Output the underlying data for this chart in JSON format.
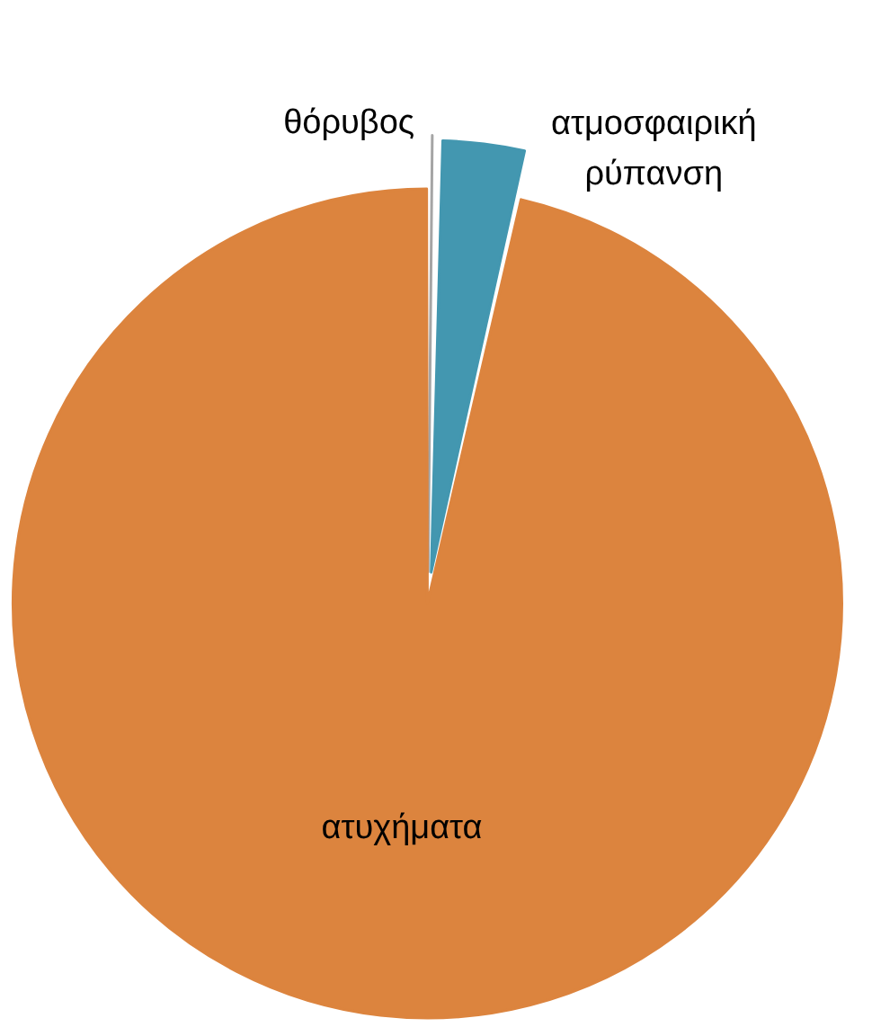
{
  "chart_data": {
    "type": "pie",
    "categories": [
      "θόρυβος",
      "ατμοσφαιρική ρύπανση",
      "ατυχήματα"
    ],
    "values": [
      0.3,
      3.3,
      96.4
    ],
    "colors": [
      "#a5a5a5",
      "#4397b0",
      "#dc843e"
    ],
    "legend": false
  }
}
